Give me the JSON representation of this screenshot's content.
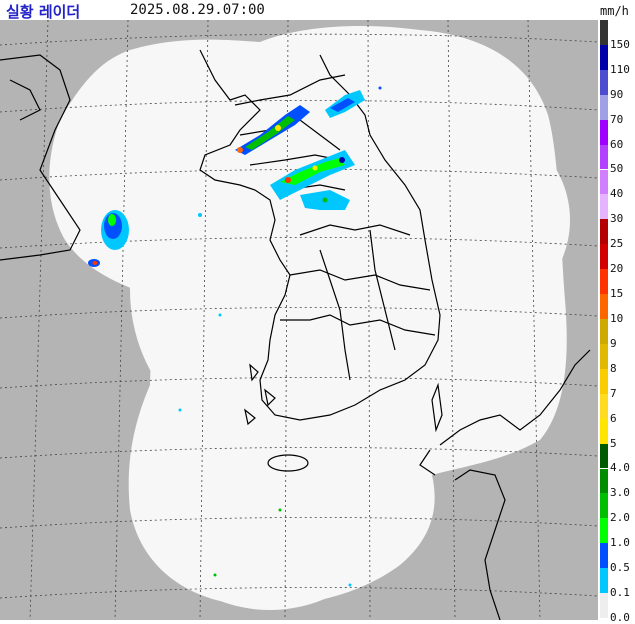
{
  "header": {
    "title": "실황 레이더",
    "timestamp": "2025.08.29.07:00",
    "unit": "mm/h"
  },
  "legend": {
    "levels": [
      {
        "label": "150",
        "color": "#333333"
      },
      {
        "label": "110",
        "color": "#0000aa"
      },
      {
        "label": "90",
        "color": "#4c4cd0"
      },
      {
        "label": "70",
        "color": "#a0a0e6"
      },
      {
        "label": "60",
        "color": "#a000ff"
      },
      {
        "label": "50",
        "color": "#b340ff"
      },
      {
        "label": "40",
        "color": "#d080ff"
      },
      {
        "label": "30",
        "color": "#e6b3ff"
      },
      {
        "label": "25",
        "color": "#b30000"
      },
      {
        "label": "20",
        "color": "#d20000"
      },
      {
        "label": "15",
        "color": "#ff3300"
      },
      {
        "label": "10",
        "color": "#ff6600"
      },
      {
        "label": "9",
        "color": "#ccaa00"
      },
      {
        "label": "8",
        "color": "#e0b900"
      },
      {
        "label": "7",
        "color": "#f9cd00"
      },
      {
        "label": "6",
        "color": "#ffdc1f"
      },
      {
        "label": "5",
        "color": "#ffe600"
      },
      {
        "label": "4.0",
        "color": "#005a00"
      },
      {
        "label": "3.0",
        "color": "#008c00"
      },
      {
        "label": "2.0",
        "color": "#00be00"
      },
      {
        "label": "1.0",
        "color": "#00ff00"
      },
      {
        "label": "0.5",
        "color": "#0050ff"
      },
      {
        "label": "0.1",
        "color": "#00c8ff"
      },
      {
        "label": "0.0",
        "color": "#eeeeee"
      }
    ]
  },
  "map": {
    "coverage_color": "#f7f7f7",
    "background_color": "#b4b4b4",
    "grid_color": "#333333",
    "coast_color": "#000000"
  }
}
